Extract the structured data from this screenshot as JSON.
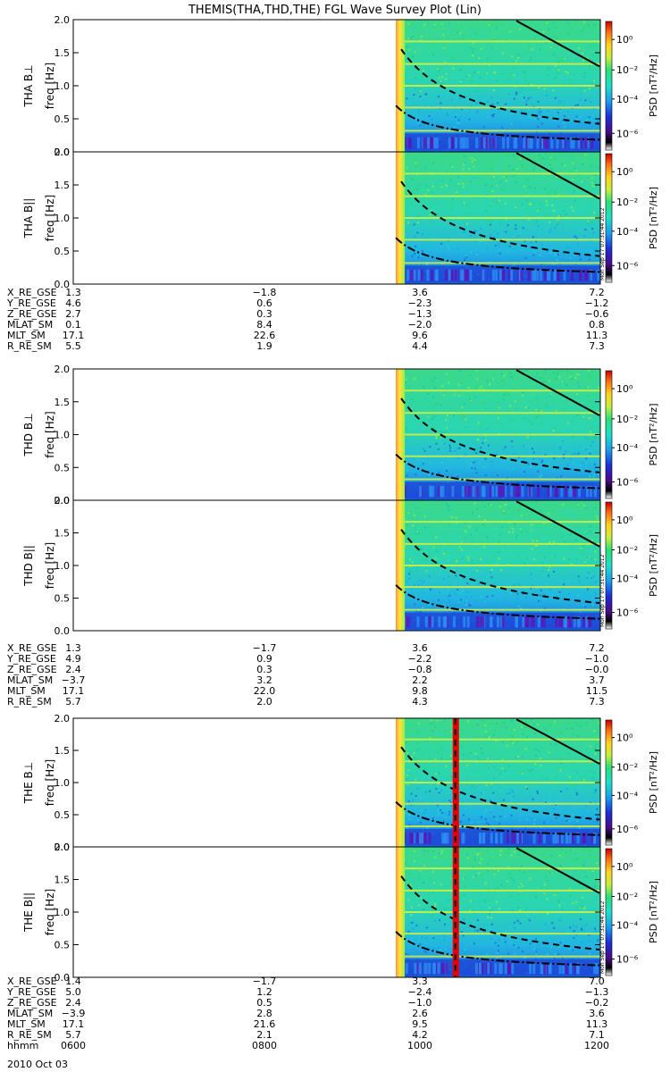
{
  "title": "THEMIS(THA,THD,THE) FGL Wave Survey Plot (Lin)",
  "colors": {
    "background_fill": "#2bd7a8",
    "harmonic_line": "#d8f23c",
    "onset_strip": "#ffd23a",
    "event_line": "#e60000"
  },
  "chart_data": [
    {
      "type": "heatmap",
      "panel": "THA B⊥",
      "ylabel": "THA B⊥",
      "ylabel2": "freq [Hz]",
      "yticks": [
        "0.0",
        "0.5",
        "1.0",
        "1.5",
        "2.0"
      ],
      "ylim": [
        0,
        2
      ],
      "colorbar": {
        "label": "PSD [nT²/Hz]",
        "ticks": [
          "10⁰",
          "10⁻²",
          "10⁻⁴",
          "10⁻⁶"
        ]
      },
      "data_start_fraction": 0.612,
      "event_line": false
    },
    {
      "type": "heatmap",
      "panel": "THA B||",
      "ylabel": "THA B||",
      "ylabel2": "freq [Hz]",
      "yticks": [
        "0.0",
        "0.5",
        "1.0",
        "1.5",
        "2.0"
      ],
      "ylim": [
        0,
        2
      ],
      "colorbar": {
        "label": "PSD [nT²/Hz]",
        "ticks": [
          "10⁰",
          "10⁻²",
          "10⁻⁴",
          "10⁻⁶"
        ]
      },
      "stamp": "Mon Sep 17 07:31:44 2012",
      "data_start_fraction": 0.612,
      "event_line": false
    },
    {
      "type": "heatmap",
      "panel": "THD B⊥",
      "ylabel": "THD B⊥",
      "ylabel2": "freq [Hz]",
      "yticks": [
        "0.0",
        "0.5",
        "1.0",
        "1.5",
        "2.0"
      ],
      "ylim": [
        0,
        2
      ],
      "colorbar": {
        "label": "PSD [nT²/Hz]",
        "ticks": [
          "10⁰",
          "10⁻²",
          "10⁻⁴",
          "10⁻⁶"
        ]
      },
      "data_start_fraction": 0.612,
      "event_line": false
    },
    {
      "type": "heatmap",
      "panel": "THD B||",
      "ylabel": "THD B||",
      "ylabel2": "freq [Hz]",
      "yticks": [
        "0.0",
        "0.5",
        "1.0",
        "1.5",
        "2.0"
      ],
      "ylim": [
        0,
        2
      ],
      "colorbar": {
        "label": "PSD [nT²/Hz]",
        "ticks": [
          "10⁰",
          "10⁻²",
          "10⁻⁴",
          "10⁻⁶"
        ]
      },
      "stamp": "Mon Sep 17 07:31:44 2012",
      "data_start_fraction": 0.612,
      "event_line": false
    },
    {
      "type": "heatmap",
      "panel": "THE B⊥",
      "ylabel": "THE B⊥",
      "ylabel2": "freq [Hz]",
      "yticks": [
        "0.0",
        "0.5",
        "1.0",
        "1.5",
        "2.0"
      ],
      "ylim": [
        0,
        2
      ],
      "colorbar": {
        "label": "PSD [nT²/Hz]",
        "ticks": [
          "10⁰",
          "10⁻²",
          "10⁻⁴",
          "10⁻⁶"
        ]
      },
      "data_start_fraction": 0.612,
      "event_line": true
    },
    {
      "type": "heatmap",
      "panel": "THE B||",
      "ylabel": "THE B||",
      "ylabel2": "freq [Hz]",
      "yticks": [
        "0.0",
        "0.5",
        "1.0",
        "1.5",
        "2.0"
      ],
      "ylim": [
        0,
        2
      ],
      "colorbar": {
        "label": "PSD [nT²/Hz]",
        "ticks": [
          "10⁰",
          "10⁻²",
          "10⁻⁴",
          "10⁻⁶"
        ]
      },
      "stamp": "Mon Sep 17 07:31:44 2012",
      "data_start_fraction": 0.612,
      "event_line": true
    }
  ],
  "ephemeris": [
    {
      "rows": [
        {
          "label": "X_RE_GSE",
          "values": [
            "1.3",
            "−1.8",
            "3.6",
            "7.2"
          ]
        },
        {
          "label": "Y_RE_GSE",
          "values": [
            "4.6",
            "0.6",
            "−2.3",
            "−1.2"
          ]
        },
        {
          "label": "Z_RE_GSE",
          "values": [
            "2.7",
            "0.3",
            "−1.3",
            "−0.6"
          ]
        },
        {
          "label": "MLAT_SM",
          "values": [
            "0.1",
            "8.4",
            "−2.0",
            "0.8"
          ]
        },
        {
          "label": "MLT_SM",
          "values": [
            "17.1",
            "22.6",
            "9.6",
            "11.3"
          ]
        },
        {
          "label": "R_RE_SM",
          "values": [
            "5.5",
            "1.9",
            "4.4",
            "7.3"
          ]
        }
      ]
    },
    {
      "rows": [
        {
          "label": "X_RE_GSE",
          "values": [
            "1.3",
            "−1.7",
            "3.6",
            "7.2"
          ]
        },
        {
          "label": "Y_RE_GSE",
          "values": [
            "4.9",
            "0.9",
            "−2.2",
            "−1.0"
          ]
        },
        {
          "label": "Z_RE_GSE",
          "values": [
            "2.4",
            "0.3",
            "−0.8",
            "−0.0"
          ]
        },
        {
          "label": "MLAT_SM",
          "values": [
            "−3.7",
            "3.2",
            "2.2",
            "3.7"
          ]
        },
        {
          "label": "MLT_SM",
          "values": [
            "17.1",
            "22.0",
            "9.8",
            "11.5"
          ]
        },
        {
          "label": "R_RE_SM",
          "values": [
            "5.7",
            "2.0",
            "4.3",
            "7.3"
          ]
        }
      ]
    },
    {
      "rows": [
        {
          "label": "X_RE_GSE",
          "values": [
            "1.4",
            "−1.7",
            "3.3",
            "7.0"
          ]
        },
        {
          "label": "Y_RE_GSE",
          "values": [
            "5.0",
            "1.2",
            "−2.4",
            "−1.3"
          ]
        },
        {
          "label": "Z_RE_GSE",
          "values": [
            "2.4",
            "0.5",
            "−1.0",
            "−0.2"
          ]
        },
        {
          "label": "MLAT_SM",
          "values": [
            "−3.9",
            "2.8",
            "2.6",
            "3.6"
          ]
        },
        {
          "label": "MLT_SM",
          "values": [
            "17.1",
            "21.6",
            "9.5",
            "11.3"
          ]
        },
        {
          "label": "R_RE_SM",
          "values": [
            "5.7",
            "2.1",
            "4.2",
            "7.1"
          ]
        },
        {
          "label": "hhmm",
          "values": [
            "0600",
            "0800",
            "1000",
            "1200"
          ]
        }
      ]
    }
  ],
  "date_label": "2010 Oct 03"
}
